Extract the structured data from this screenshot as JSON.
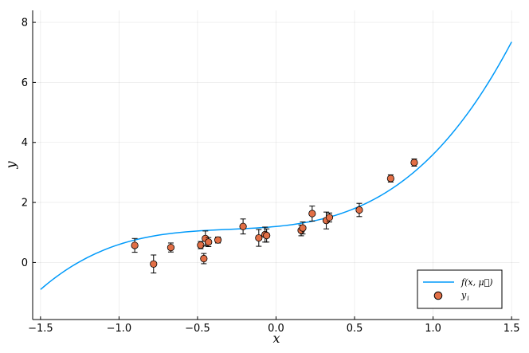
{
  "chart_data": {
    "type": "scatter",
    "title": "",
    "xlabel": "x",
    "ylabel": "y",
    "xlim": [
      -1.55,
      1.55
    ],
    "ylim": [
      -1.9,
      8.4
    ],
    "grid": true,
    "legend_position": "bottom-right",
    "x_ticks": [
      -1.5,
      -1.0,
      -0.5,
      0.0,
      0.5,
      1.0,
      1.5
    ],
    "x_tick_labels": [
      "-1.5",
      "-1.0",
      "-0.5",
      "0.0",
      "0.5",
      "1.0",
      "1.5"
    ],
    "y_ticks": [
      0,
      2,
      4,
      6,
      8
    ],
    "y_tick_labels": [
      "0",
      "2",
      "4",
      "6",
      "8"
    ],
    "colors": {
      "line": "#009AFA",
      "points": "#E26F46",
      "errorbars": "#000000"
    },
    "series": [
      {
        "name": "f(x, μ⃗)",
        "legend_label": "f(x, μ⃗)",
        "type": "line",
        "function": {
          "form": "cubic",
          "coefficients": [
            1.0,
            0.9,
            0.5,
            1.2
          ]
        },
        "x_range": [
          -1.5,
          1.5
        ]
      },
      {
        "name": "y_i",
        "legend_label": "y",
        "legend_subscript": "i",
        "type": "scatter",
        "x": [
          -0.9,
          -0.78,
          -0.67,
          -0.48,
          -0.46,
          -0.45,
          -0.43,
          -0.37,
          -0.21,
          -0.11,
          -0.07,
          -0.06,
          0.16,
          0.17,
          0.23,
          0.32,
          0.34,
          0.53,
          0.73,
          0.88
        ],
        "y": [
          0.57,
          -0.05,
          0.5,
          0.58,
          0.13,
          0.8,
          0.68,
          0.75,
          1.2,
          0.82,
          0.93,
          0.9,
          1.07,
          1.15,
          1.63,
          1.4,
          1.5,
          1.75,
          2.8,
          3.33
        ],
        "yerr": [
          0.23,
          0.3,
          0.15,
          0.12,
          0.17,
          0.25,
          0.15,
          0.1,
          0.25,
          0.28,
          0.25,
          0.22,
          0.18,
          0.2,
          0.25,
          0.28,
          0.15,
          0.22,
          0.12,
          0.12
        ]
      }
    ]
  }
}
